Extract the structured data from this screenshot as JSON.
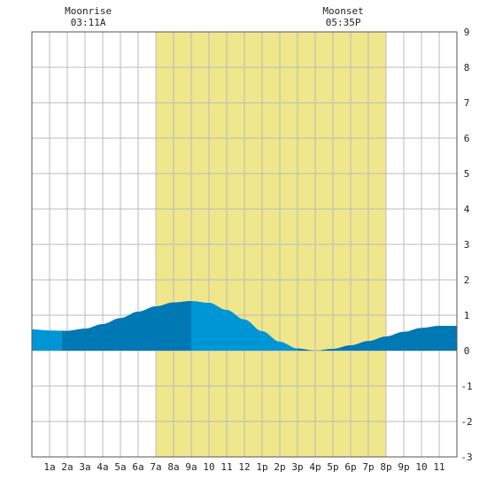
{
  "chart_data": {
    "type": "area",
    "title": "",
    "xlabel": "",
    "ylabel": "",
    "x_tick_labels": [
      "1a",
      "2a",
      "3a",
      "4a",
      "5a",
      "6a",
      "7a",
      "8a",
      "9a",
      "10",
      "11",
      "12",
      "1p",
      "2p",
      "3p",
      "4p",
      "5p",
      "6p",
      "7p",
      "8p",
      "9p",
      "10",
      "11"
    ],
    "y_tick_labels": [
      "-3",
      "-2",
      "-1",
      "0",
      "1",
      "2",
      "3",
      "4",
      "5",
      "6",
      "7",
      "8",
      "9"
    ],
    "xlim": [
      0,
      24
    ],
    "ylim": [
      -3,
      9
    ],
    "grid": true,
    "daylight": {
      "start_hour": 7.0,
      "end_hour": 20.0,
      "color": "#f0e68c"
    },
    "moonrise": {
      "label": "Moonrise",
      "time": "03:11A",
      "hour": 3.18
    },
    "moonset": {
      "label": "Moonset",
      "time": "05:35P",
      "hour": 17.58
    },
    "series": [
      {
        "x": [
          0,
          1,
          2,
          3,
          4,
          5,
          6,
          7,
          8,
          9,
          10,
          11,
          12,
          13,
          14,
          15,
          16,
          17,
          18,
          19,
          20,
          21,
          22,
          23,
          24
        ],
        "values": [
          0.6,
          0.57,
          0.56,
          0.62,
          0.75,
          0.92,
          1.1,
          1.25,
          1.36,
          1.4,
          1.35,
          1.15,
          0.88,
          0.55,
          0.25,
          0.06,
          0.0,
          0.05,
          0.15,
          0.27,
          0.4,
          0.53,
          0.64,
          0.7,
          0.7
        ]
      }
    ],
    "colors": {
      "water_light": "#0096d6",
      "water_dark": "#0078b4",
      "grid": "#bbbbbb",
      "border": "#555555"
    },
    "dark_bands": [
      [
        1.7,
        9.0
      ],
      [
        15.0,
        24.0
      ]
    ]
  }
}
